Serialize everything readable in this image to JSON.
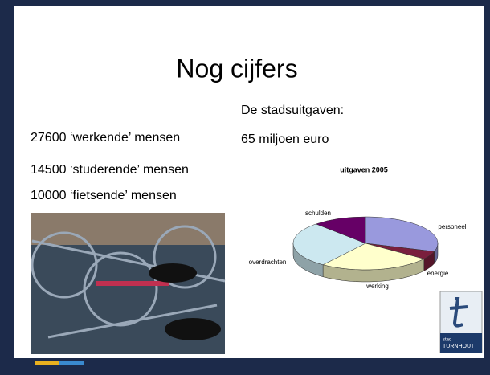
{
  "slide": {
    "title": "Nog cijfers",
    "left_lines": [
      "27600 ‘werkende’ mensen",
      "14500 ‘studerende’ mensen",
      "10000 ‘fietsende’ mensen"
    ],
    "right_lines": [
      "De stadsuitgaven:",
      "65 miljoen euro"
    ],
    "logo": [
      "stad",
      "TURNHOUT"
    ]
  },
  "chart_data": {
    "type": "pie",
    "title": "uitgaven 2005",
    "categories": [
      "personeel",
      "energie",
      "werking",
      "overdrachten",
      "schulden"
    ],
    "values": [
      30,
      5,
      25,
      28,
      12
    ],
    "colors": [
      "#9999dd",
      "#7a1f3d",
      "#ffffcc",
      "#cce8f0",
      "#660066"
    ]
  }
}
